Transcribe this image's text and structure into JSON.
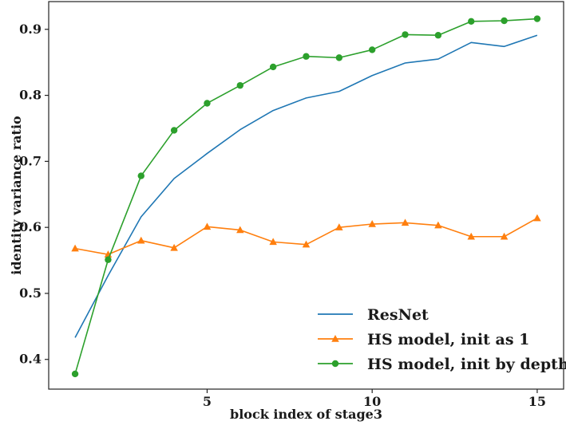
{
  "chart_data": {
    "type": "line",
    "title": "",
    "xlabel": "block index of stage3",
    "ylabel": "identity variance ratio",
    "xlim": [
      0.2,
      15.8
    ],
    "ylim": [
      0.355,
      0.942
    ],
    "xticks": [
      5,
      10,
      15
    ],
    "yticks": [
      0.4,
      0.5,
      0.6,
      0.7,
      0.8,
      0.9
    ],
    "xtick_labels": [
      "5",
      "10",
      "15"
    ],
    "ytick_labels": [
      "0.4",
      "0.5",
      "0.6",
      "0.7",
      "0.8",
      "0.9"
    ],
    "grid": false,
    "legend_position": "lower-right",
    "x": [
      1,
      2,
      3,
      4,
      5,
      6,
      7,
      8,
      9,
      10,
      11,
      12,
      13,
      14,
      15
    ],
    "series": [
      {
        "name": "ResNet",
        "color": "#1f77b4",
        "marker": "none",
        "values": [
          0.433,
          0.527,
          0.616,
          0.674,
          0.712,
          0.748,
          0.777,
          0.796,
          0.806,
          0.83,
          0.849,
          0.855,
          0.88,
          0.874,
          0.891
        ]
      },
      {
        "name": "HS model, init as 1",
        "color": "#ff7f0e",
        "marker": "triangle",
        "values": [
          0.568,
          0.559,
          0.58,
          0.569,
          0.601,
          0.596,
          0.578,
          0.574,
          0.6,
          0.605,
          0.607,
          0.603,
          0.586,
          0.586,
          0.614
        ]
      },
      {
        "name": "HS model, init by depth",
        "color": "#2ca02c",
        "marker": "circle",
        "values": [
          0.378,
          0.551,
          0.678,
          0.747,
          0.788,
          0.815,
          0.843,
          0.859,
          0.857,
          0.869,
          0.892,
          0.891,
          0.912,
          0.913,
          0.916
        ]
      }
    ]
  }
}
